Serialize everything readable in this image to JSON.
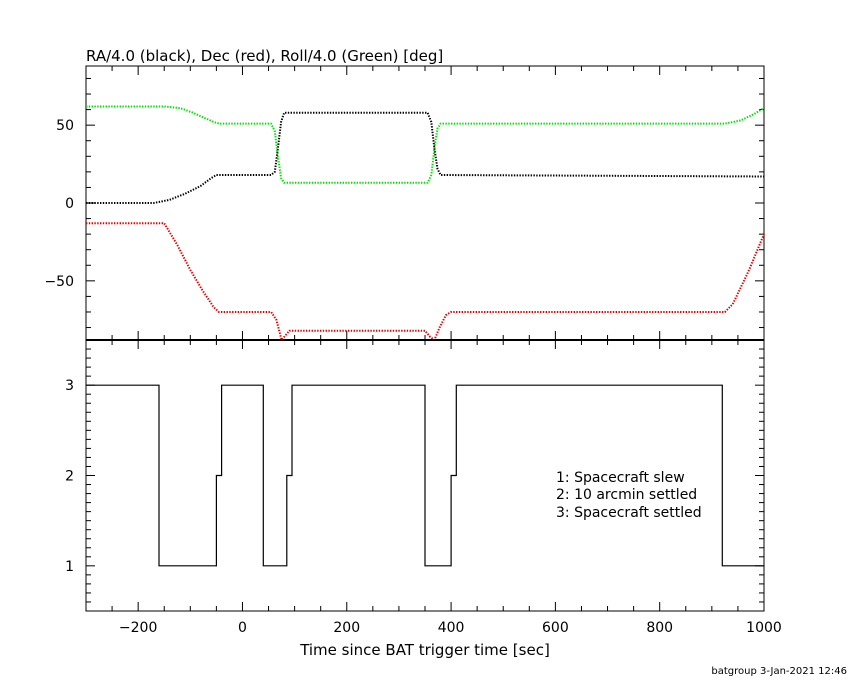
{
  "chart_data": [
    {
      "type": "line",
      "title": "RA/4.0 (black), Dec (red), Roll/4.0 (Green) [deg]",
      "xlim": [
        -300,
        1000
      ],
      "ylim": [
        -88,
        88
      ],
      "yticks": [
        -50,
        0,
        50
      ],
      "series": [
        {
          "color": "#000000",
          "points": [
            [
              -300,
              0
            ],
            [
              -170,
              0
            ],
            [
              -140,
              2
            ],
            [
              -110,
              6
            ],
            [
              -80,
              11
            ],
            [
              -60,
              16
            ],
            [
              -50,
              18
            ],
            [
              55,
              18
            ],
            [
              62,
              20
            ],
            [
              68,
              35
            ],
            [
              74,
              52
            ],
            [
              80,
              58
            ],
            [
              355,
              58
            ],
            [
              362,
              52
            ],
            [
              368,
              35
            ],
            [
              374,
              22
            ],
            [
              380,
              18
            ],
            [
              1000,
              17
            ]
          ]
        },
        {
          "color": "#e00000",
          "points": [
            [
              -300,
              -13
            ],
            [
              -150,
              -13
            ],
            [
              -125,
              -27
            ],
            [
              -100,
              -43
            ],
            [
              -75,
              -57
            ],
            [
              -55,
              -67
            ],
            [
              -45,
              -70
            ],
            [
              55,
              -70
            ],
            [
              65,
              -75
            ],
            [
              75,
              -88
            ],
            [
              80,
              -86
            ],
            [
              90,
              -82
            ],
            [
              350,
              -82
            ],
            [
              360,
              -86
            ],
            [
              368,
              -88
            ],
            [
              378,
              -80
            ],
            [
              390,
              -72
            ],
            [
              400,
              -70
            ],
            [
              925,
              -70
            ],
            [
              940,
              -65
            ],
            [
              970,
              -44
            ],
            [
              1000,
              -20
            ]
          ]
        },
        {
          "color": "#00e000",
          "points": [
            [
              -300,
              62
            ],
            [
              -150,
              62
            ],
            [
              -120,
              61
            ],
            [
              -95,
              58
            ],
            [
              -75,
              55
            ],
            [
              -55,
              52
            ],
            [
              -45,
              51
            ],
            [
              55,
              51
            ],
            [
              62,
              46
            ],
            [
              68,
              30
            ],
            [
              74,
              16
            ],
            [
              80,
              13
            ],
            [
              355,
              13
            ],
            [
              362,
              18
            ],
            [
              368,
              35
            ],
            [
              374,
              48
            ],
            [
              380,
              51
            ],
            [
              925,
              51
            ],
            [
              955,
              53
            ],
            [
              980,
              57
            ],
            [
              1000,
              61
            ]
          ]
        }
      ]
    },
    {
      "type": "line",
      "xlabel": "Time since BAT trigger time [sec]",
      "xlim": [
        -300,
        1000
      ],
      "ylim": [
        0.5,
        3.5
      ],
      "xticks": [
        -200,
        0,
        200,
        400,
        600,
        800,
        1000
      ],
      "yticks": [
        1,
        2,
        3
      ],
      "legend": [
        "1: Spacecraft slew",
        "2: 10 arcmin settled",
        "3: Spacecraft settled"
      ],
      "legend_position": "right",
      "series": [
        {
          "color": "#000000",
          "step": true,
          "points": [
            [
              -300,
              3
            ],
            [
              -160,
              1
            ],
            [
              -50,
              2
            ],
            [
              -40,
              3
            ],
            [
              40,
              1
            ],
            [
              85,
              2
            ],
            [
              95,
              3
            ],
            [
              350,
              1
            ],
            [
              400,
              2
            ],
            [
              410,
              3
            ],
            [
              920,
              1
            ],
            [
              1000,
              1
            ]
          ]
        }
      ]
    }
  ],
  "footer": "batgroup  3-Jan-2021 12:46"
}
